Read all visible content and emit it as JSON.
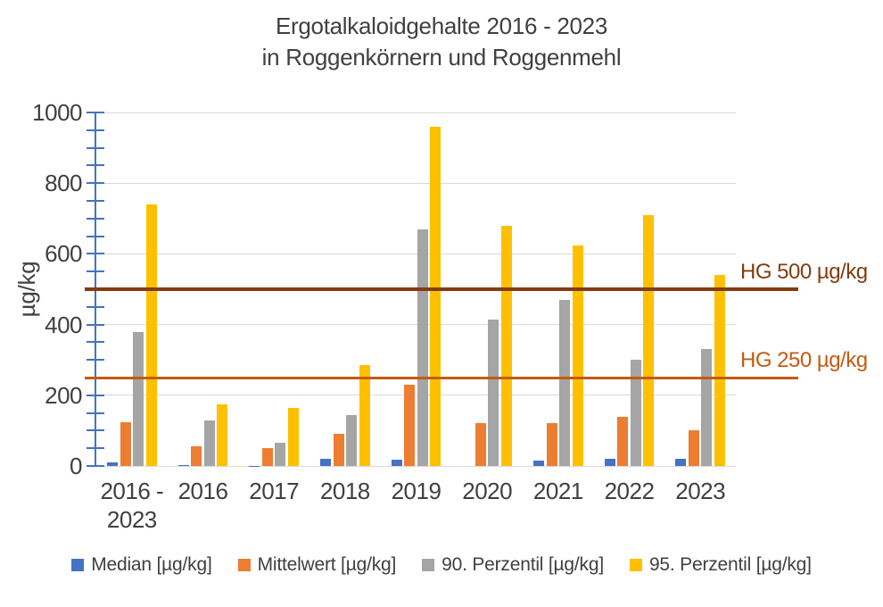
{
  "title": {
    "line1": "Ergotalkaloidgehalte 2016 - 2023",
    "line2": "in Roggenkörnern und Roggenmehl"
  },
  "chart_data": {
    "type": "bar",
    "title": "Ergotalkaloidgehalte 2016 - 2023 in Roggenkörnern und Roggenmehl",
    "ylabel": "µg/kg",
    "xlabel": "",
    "ylim": [
      0,
      1000
    ],
    "yticks": [
      0,
      200,
      400,
      600,
      800,
      1000
    ],
    "minor_tick_step": 50,
    "grid": true,
    "legend_position": "bottom",
    "categories": [
      "2016 -\n2023",
      "2016",
      "2017",
      "2018",
      "2019",
      "2020",
      "2021",
      "2022",
      "2023"
    ],
    "series": [
      {
        "name": "Median [µg/kg]",
        "color": "#4472C4",
        "values": [
          10,
          3,
          1,
          20,
          18,
          0,
          15,
          20,
          20
        ]
      },
      {
        "name": "Mittelwert [µg/kg]",
        "color": "#ED7D31",
        "values": [
          125,
          55,
          50,
          90,
          230,
          120,
          120,
          140,
          100
        ]
      },
      {
        "name": "90. Perzentil [µg/kg]",
        "color": "#A5A5A5",
        "values": [
          380,
          130,
          65,
          145,
          670,
          415,
          470,
          300,
          330
        ]
      },
      {
        "name": "95. Perzentil [µg/kg]",
        "color": "#FFC000",
        "values": [
          740,
          175,
          165,
          285,
          960,
          680,
          625,
          710,
          540
        ]
      }
    ],
    "reference_lines": [
      {
        "label": "HG 500 µg/kg",
        "value": 500,
        "color": "#843C0C",
        "thickness_px": 4
      },
      {
        "label": "HG 250 µg/kg",
        "value": 250,
        "color": "#C55A11",
        "thickness_px": 3
      }
    ],
    "colors": {
      "gridline": "#D9D9D9",
      "axis": "#4472C4",
      "text": "#404040"
    }
  }
}
